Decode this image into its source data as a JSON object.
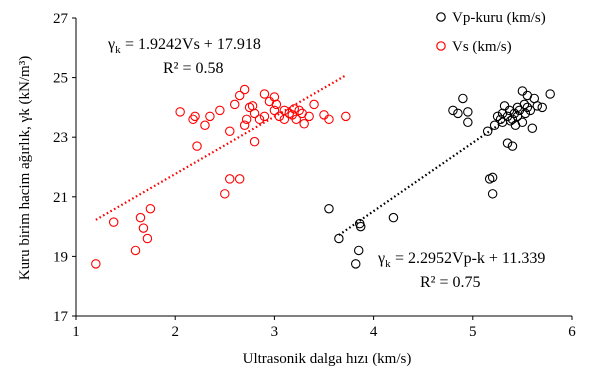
{
  "chart_data": {
    "type": "scatter",
    "xlabel": "Ultrasonik dalga hızı (km/s)",
    "ylabel": "Kuru birim hacim ağırlık, γk (kN/m³)",
    "xlim": [
      1,
      6
    ],
    "ylim": [
      17,
      27
    ],
    "x_ticks": [
      1,
      2,
      3,
      4,
      5,
      6
    ],
    "y_ticks": [
      17,
      19,
      21,
      23,
      25,
      27
    ],
    "x_tick_labels": [
      "1",
      "2",
      "3",
      "4",
      "5",
      "6"
    ],
    "y_tick_labels": [
      "17",
      "19",
      "21",
      "23",
      "25",
      "27"
    ],
    "grid": false,
    "legend_position": "top-right",
    "series": [
      {
        "name": "Vp-kuru (km/s)",
        "color": "#000000",
        "marker": "open-circle",
        "points": [
          [
            3.55,
            20.6
          ],
          [
            3.65,
            19.6
          ],
          [
            3.82,
            18.75
          ],
          [
            3.85,
            19.2
          ],
          [
            3.86,
            20.1
          ],
          [
            3.87,
            20.0
          ],
          [
            4.2,
            20.3
          ],
          [
            4.8,
            23.9
          ],
          [
            4.85,
            23.8
          ],
          [
            4.9,
            24.3
          ],
          [
            4.95,
            23.5
          ],
          [
            4.95,
            23.85
          ],
          [
            5.15,
            23.2
          ],
          [
            5.17,
            21.6
          ],
          [
            5.2,
            21.65
          ],
          [
            5.2,
            21.1
          ],
          [
            5.22,
            23.4
          ],
          [
            5.25,
            23.7
          ],
          [
            5.28,
            23.6
          ],
          [
            5.3,
            23.8
          ],
          [
            5.3,
            23.5
          ],
          [
            5.32,
            24.05
          ],
          [
            5.35,
            22.8
          ],
          [
            5.35,
            23.7
          ],
          [
            5.37,
            23.9
          ],
          [
            5.38,
            23.55
          ],
          [
            5.4,
            22.7
          ],
          [
            5.4,
            23.6
          ],
          [
            5.42,
            23.8
          ],
          [
            5.43,
            23.4
          ],
          [
            5.45,
            24.0
          ],
          [
            5.45,
            23.7
          ],
          [
            5.47,
            23.9
          ],
          [
            5.5,
            23.5
          ],
          [
            5.5,
            24.55
          ],
          [
            5.52,
            24.1
          ],
          [
            5.53,
            23.8
          ],
          [
            5.55,
            24.0
          ],
          [
            5.55,
            24.4
          ],
          [
            5.58,
            23.9
          ],
          [
            5.6,
            23.3
          ],
          [
            5.62,
            24.3
          ],
          [
            5.65,
            24.05
          ],
          [
            5.7,
            24.0
          ],
          [
            5.78,
            24.45
          ]
        ]
      },
      {
        "name": "Vs (km/s)",
        "color": "#ff0000",
        "marker": "open-circle",
        "points": [
          [
            1.2,
            18.75
          ],
          [
            1.38,
            20.15
          ],
          [
            1.6,
            19.2
          ],
          [
            1.65,
            20.3
          ],
          [
            1.68,
            19.95
          ],
          [
            1.72,
            19.6
          ],
          [
            1.75,
            20.6
          ],
          [
            2.05,
            23.85
          ],
          [
            2.18,
            23.6
          ],
          [
            2.2,
            23.7
          ],
          [
            2.22,
            22.7
          ],
          [
            2.3,
            23.4
          ],
          [
            2.35,
            23.7
          ],
          [
            2.45,
            23.9
          ],
          [
            2.5,
            21.1
          ],
          [
            2.55,
            23.2
          ],
          [
            2.55,
            21.6
          ],
          [
            2.6,
            24.1
          ],
          [
            2.65,
            21.6
          ],
          [
            2.65,
            24.4
          ],
          [
            2.7,
            24.6
          ],
          [
            2.7,
            23.4
          ],
          [
            2.72,
            23.6
          ],
          [
            2.75,
            24.0
          ],
          [
            2.78,
            24.05
          ],
          [
            2.8,
            22.85
          ],
          [
            2.8,
            23.8
          ],
          [
            2.85,
            23.6
          ],
          [
            2.9,
            24.45
          ],
          [
            2.9,
            23.7
          ],
          [
            2.95,
            24.2
          ],
          [
            3.0,
            24.35
          ],
          [
            3.0,
            23.9
          ],
          [
            3.02,
            24.1
          ],
          [
            3.05,
            23.7
          ],
          [
            3.1,
            23.9
          ],
          [
            3.1,
            23.6
          ],
          [
            3.15,
            23.8
          ],
          [
            3.18,
            23.75
          ],
          [
            3.2,
            23.95
          ],
          [
            3.22,
            23.6
          ],
          [
            3.25,
            23.9
          ],
          [
            3.28,
            23.8
          ],
          [
            3.3,
            23.45
          ],
          [
            3.35,
            23.7
          ],
          [
            3.4,
            24.1
          ],
          [
            3.5,
            23.75
          ],
          [
            3.55,
            23.6
          ],
          [
            3.72,
            23.7
          ]
        ]
      }
    ],
    "trendlines": [
      {
        "series": "Vs (km/s)",
        "color": "#ff0000",
        "style": "dotted",
        "x_range": [
          1.2,
          3.72
        ],
        "slope": 1.9242,
        "intercept": 17.918,
        "equation_label": "= 1.9242Vs + 17.918",
        "r2_label": "R² = 0.58"
      },
      {
        "series": "Vp-kuru (km/s)",
        "color": "#000000",
        "style": "dotted",
        "x_range": [
          3.65,
          5.3
        ],
        "slope": 2.2952,
        "intercept": 11.339,
        "equation_label": "= 2.2952Vp-k + 11.339",
        "r2_label": "R² = 0.75"
      }
    ]
  }
}
